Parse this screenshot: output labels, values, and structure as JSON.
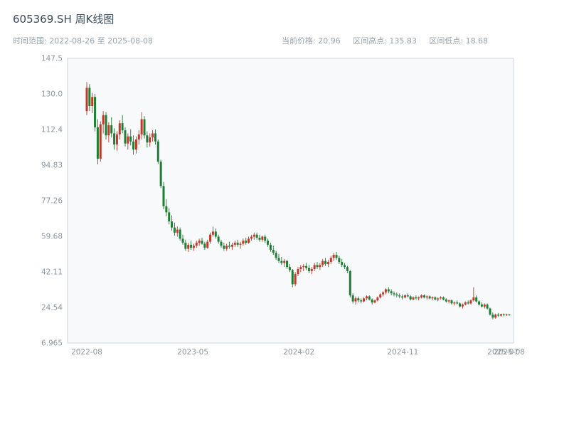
{
  "header": {
    "title": "605369.SH 周K线图",
    "time_range": {
      "text": "时间范围: 2022-08-26 至 2025-08-08",
      "label": "时间范围",
      "start": "2022-08-26",
      "end": "2025-08-08"
    },
    "stats": [
      {
        "label": "当前价格",
        "value": "20.96",
        "text": "当前价格: 20.96"
      },
      {
        "label": "区间高点",
        "value": "135.83",
        "text": "区间高点: 135.83"
      },
      {
        "label": "区间低点",
        "value": "18.68",
        "text": "区间低点: 18.68"
      }
    ]
  },
  "chart_data": {
    "type": "candlestick",
    "title": "605369.SH 周K线图",
    "symbol": "605369.SH",
    "frequency": "weekly",
    "date_range": {
      "start": "2022-08-26",
      "end": "2025-08-08"
    },
    "current_price": 20.96,
    "range_high": 135.83,
    "range_low": 18.68,
    "grid": false,
    "legend": false,
    "colors": {
      "up": "#c0392b",
      "down": "#1e7e34",
      "plot_bg": "#f8f9fa",
      "border": "#cfd6db",
      "tick_text": "#8d969e",
      "title_text": "#3a4a5a",
      "subtitle_text": "#98a2aa"
    },
    "y_axis": {
      "min": 6.965,
      "max": 147.545,
      "ticks": [
        {
          "label": "147.5",
          "value": 147.5
        },
        {
          "label": "130.0",
          "value": 130.0
        },
        {
          "label": "112.4",
          "value": 112.4
        },
        {
          "label": "94.83",
          "value": 94.83
        },
        {
          "label": "77.26",
          "value": 77.26
        },
        {
          "label": "59.68",
          "value": 59.68
        },
        {
          "label": "42.11",
          "value": 42.11
        },
        {
          "label": "24.54",
          "value": 24.54
        },
        {
          "label": "6.965",
          "value": 6.965
        }
      ]
    },
    "x_axis": {
      "ticks": [
        {
          "label": "2022-08",
          "pos": 0.0
        },
        {
          "label": "2023-05",
          "pos": 0.251
        },
        {
          "label": "2024-02",
          "pos": 0.502
        },
        {
          "label": "2024-11",
          "pos": 0.748
        },
        {
          "label": "2025-07",
          "pos": 0.985
        },
        {
          "label": "2025-08",
          "pos": 1.0
        }
      ]
    },
    "candles_format": [
      "open",
      "high",
      "low",
      "close"
    ],
    "candles": [
      [
        121.5,
        135.83,
        119.5,
        133.0
      ],
      [
        133.0,
        134.8,
        121.5,
        124.0
      ],
      [
        124.0,
        130.5,
        120.5,
        128.5
      ],
      [
        128.5,
        130.0,
        111.5,
        113.5
      ],
      [
        113.5,
        117.5,
        95.2,
        98.0
      ],
      [
        98.0,
        116.5,
        96.5,
        115.0
      ],
      [
        115.0,
        121.5,
        110.5,
        119.5
      ],
      [
        119.5,
        121.0,
        107.5,
        109.5
      ],
      [
        109.5,
        116.0,
        106.0,
        114.5
      ],
      [
        114.5,
        118.5,
        108.5,
        110.5
      ],
      [
        110.5,
        113.0,
        102.5,
        105.0
      ],
      [
        105.0,
        111.5,
        102.0,
        110.0
      ],
      [
        110.0,
        117.0,
        107.5,
        115.5
      ],
      [
        115.5,
        119.5,
        110.5,
        112.0
      ],
      [
        112.0,
        113.5,
        104.0,
        105.5
      ],
      [
        105.5,
        110.5,
        102.5,
        109.0
      ],
      [
        109.0,
        112.5,
        104.5,
        106.5
      ],
      [
        106.5,
        109.5,
        100.0,
        102.5
      ],
      [
        102.5,
        109.0,
        100.5,
        107.5
      ],
      [
        107.5,
        112.0,
        105.0,
        110.0
      ],
      [
        110.0,
        121.0,
        107.5,
        117.5
      ],
      [
        117.5,
        119.0,
        108.0,
        109.5
      ],
      [
        109.5,
        111.5,
        103.5,
        106.0
      ],
      [
        106.0,
        110.5,
        104.0,
        108.5
      ],
      [
        108.5,
        112.0,
        106.5,
        110.5
      ],
      [
        110.5,
        112.5,
        105.0,
        106.5
      ],
      [
        106.5,
        107.5,
        95.5,
        96.5
      ],
      [
        96.5,
        97.5,
        83.5,
        84.5
      ],
      [
        84.5,
        86.5,
        73.0,
        74.5
      ],
      [
        74.5,
        78.0,
        69.5,
        71.5
      ],
      [
        71.5,
        73.5,
        65.5,
        67.0
      ],
      [
        67.0,
        70.0,
        62.5,
        64.0
      ],
      [
        64.0,
        66.5,
        60.0,
        61.5
      ],
      [
        61.5,
        64.5,
        59.5,
        63.0
      ],
      [
        63.0,
        64.0,
        57.5,
        58.5
      ],
      [
        58.5,
        60.5,
        55.5,
        56.5
      ],
      [
        56.5,
        58.0,
        52.5,
        53.5
      ],
      [
        53.5,
        56.5,
        52.0,
        55.5
      ],
      [
        55.5,
        57.5,
        53.0,
        54.0
      ],
      [
        54.0,
        56.0,
        52.5,
        55.0
      ],
      [
        55.0,
        57.5,
        54.0,
        56.5
      ],
      [
        56.5,
        58.5,
        55.0,
        57.5
      ],
      [
        57.5,
        59.0,
        55.5,
        56.0
      ],
      [
        56.0,
        57.0,
        53.0,
        54.0
      ],
      [
        54.0,
        58.0,
        53.5,
        57.0
      ],
      [
        57.0,
        61.5,
        56.0,
        60.5
      ],
      [
        60.5,
        64.5,
        59.5,
        62.0
      ],
      [
        62.0,
        63.5,
        58.5,
        59.5
      ],
      [
        59.5,
        60.5,
        56.0,
        57.0
      ],
      [
        57.0,
        58.0,
        54.0,
        55.0
      ],
      [
        55.0,
        56.5,
        52.5,
        53.5
      ],
      [
        53.5,
        56.0,
        52.5,
        55.0
      ],
      [
        55.0,
        57.0,
        53.5,
        54.5
      ],
      [
        54.5,
        56.5,
        53.0,
        55.5
      ],
      [
        55.5,
        57.5,
        54.5,
        56.5
      ],
      [
        56.5,
        58.0,
        54.5,
        55.5
      ],
      [
        55.5,
        57.0,
        53.5,
        56.0
      ],
      [
        56.0,
        58.5,
        55.0,
        57.5
      ],
      [
        57.5,
        59.0,
        55.5,
        56.5
      ],
      [
        56.5,
        59.5,
        56.0,
        58.5
      ],
      [
        58.5,
        60.5,
        57.5,
        59.5
      ],
      [
        59.5,
        61.5,
        58.0,
        60.5
      ],
      [
        60.5,
        61.5,
        58.0,
        59.0
      ],
      [
        59.0,
        60.5,
        57.0,
        58.0
      ],
      [
        58.0,
        60.0,
        57.0,
        59.5
      ],
      [
        59.5,
        60.5,
        56.5,
        57.5
      ],
      [
        57.5,
        58.5,
        54.5,
        55.5
      ],
      [
        55.5,
        56.5,
        52.0,
        53.0
      ],
      [
        53.0,
        55.0,
        50.5,
        51.5
      ],
      [
        51.5,
        52.5,
        48.0,
        49.0
      ],
      [
        49.0,
        51.0,
        46.5,
        47.5
      ],
      [
        47.5,
        49.5,
        45.5,
        46.5
      ],
      [
        46.5,
        48.5,
        44.5,
        47.5
      ],
      [
        47.5,
        48.0,
        43.5,
        44.5
      ],
      [
        44.5,
        46.0,
        42.0,
        43.0
      ],
      [
        43.0,
        43.5,
        34.5,
        36.0
      ],
      [
        36.0,
        42.0,
        35.0,
        41.0
      ],
      [
        41.0,
        44.5,
        40.0,
        43.5
      ],
      [
        43.5,
        45.5,
        42.0,
        44.5
      ],
      [
        44.5,
        46.0,
        42.5,
        45.0
      ],
      [
        45.0,
        46.5,
        43.0,
        44.0
      ],
      [
        44.0,
        45.5,
        41.5,
        42.5
      ],
      [
        42.5,
        44.5,
        41.0,
        43.5
      ],
      [
        43.5,
        46.5,
        42.5,
        45.5
      ],
      [
        45.5,
        47.0,
        43.5,
        44.5
      ],
      [
        44.5,
        46.5,
        43.0,
        45.5
      ],
      [
        45.5,
        48.5,
        44.5,
        47.5
      ],
      [
        47.5,
        49.0,
        45.0,
        46.0
      ],
      [
        46.0,
        48.0,
        44.5,
        47.0
      ],
      [
        47.0,
        50.0,
        46.0,
        49.0
      ],
      [
        49.0,
        51.5,
        47.5,
        50.5
      ],
      [
        50.5,
        52.0,
        48.0,
        49.0
      ],
      [
        49.0,
        50.0,
        46.0,
        47.0
      ],
      [
        47.0,
        48.5,
        44.5,
        45.5
      ],
      [
        45.5,
        46.5,
        43.5,
        44.5
      ],
      [
        44.5,
        45.0,
        41.5,
        42.5
      ],
      [
        42.5,
        43.0,
        29.5,
        30.5
      ],
      [
        30.5,
        31.5,
        26.5,
        27.5
      ],
      [
        27.5,
        30.0,
        26.0,
        29.0
      ],
      [
        29.0,
        30.0,
        27.0,
        28.0
      ],
      [
        28.0,
        29.0,
        26.5,
        27.5
      ],
      [
        27.5,
        29.5,
        27.0,
        29.0
      ],
      [
        29.0,
        30.5,
        28.0,
        30.0
      ],
      [
        30.0,
        30.5,
        28.0,
        28.5
      ],
      [
        28.5,
        29.0,
        26.0,
        27.0
      ],
      [
        27.0,
        28.5,
        26.5,
        28.0
      ],
      [
        28.0,
        30.0,
        27.5,
        29.5
      ],
      [
        29.5,
        31.5,
        29.0,
        31.0
      ],
      [
        31.0,
        32.5,
        30.0,
        32.0
      ],
      [
        32.0,
        34.0,
        31.0,
        33.5
      ],
      [
        33.5,
        34.5,
        31.5,
        32.5
      ],
      [
        32.5,
        33.5,
        30.5,
        31.5
      ],
      [
        31.5,
        32.5,
        30.0,
        31.0
      ],
      [
        31.0,
        32.0,
        29.5,
        30.5
      ],
      [
        30.5,
        31.5,
        29.0,
        30.0
      ],
      [
        30.0,
        31.0,
        28.5,
        29.5
      ],
      [
        29.5,
        31.0,
        29.0,
        30.5
      ],
      [
        30.5,
        31.5,
        29.5,
        30.0
      ],
      [
        30.0,
        30.5,
        28.0,
        28.5
      ],
      [
        28.5,
        30.0,
        28.0,
        29.5
      ],
      [
        29.5,
        30.5,
        28.5,
        29.0
      ],
      [
        29.0,
        30.0,
        28.0,
        29.5
      ],
      [
        29.5,
        31.0,
        29.0,
        30.5
      ],
      [
        30.5,
        31.0,
        29.0,
        29.5
      ],
      [
        29.5,
        30.5,
        28.5,
        30.0
      ],
      [
        30.0,
        30.5,
        28.5,
        29.0
      ],
      [
        29.0,
        30.0,
        28.0,
        29.5
      ],
      [
        29.5,
        30.0,
        28.0,
        28.5
      ],
      [
        28.5,
        29.5,
        27.5,
        29.0
      ],
      [
        29.0,
        30.0,
        28.5,
        29.5
      ],
      [
        29.5,
        30.0,
        28.0,
        28.5
      ],
      [
        28.5,
        29.0,
        27.0,
        27.5
      ],
      [
        27.5,
        28.5,
        26.5,
        28.0
      ],
      [
        28.0,
        28.5,
        26.0,
        26.5
      ],
      [
        26.5,
        27.5,
        25.5,
        27.0
      ],
      [
        27.0,
        28.0,
        26.0,
        26.5
      ],
      [
        26.5,
        27.0,
        24.5,
        25.0
      ],
      [
        25.0,
        26.5,
        24.0,
        26.0
      ],
      [
        26.0,
        27.5,
        25.5,
        27.0
      ],
      [
        27.0,
        28.0,
        26.0,
        26.5
      ],
      [
        26.5,
        28.5,
        26.0,
        28.0
      ],
      [
        28.0,
        34.5,
        27.5,
        29.5
      ],
      [
        29.5,
        30.5,
        27.0,
        27.5
      ],
      [
        27.5,
        28.0,
        25.5,
        26.0
      ],
      [
        26.0,
        27.0,
        24.5,
        25.0
      ],
      [
        25.0,
        26.5,
        24.0,
        26.0
      ],
      [
        26.0,
        26.5,
        23.5,
        24.0
      ],
      [
        24.0,
        24.5,
        20.5,
        21.0
      ],
      [
        21.0,
        22.0,
        18.68,
        19.5
      ],
      [
        19.5,
        21.5,
        19.0,
        21.0
      ],
      [
        21.0,
        21.8,
        20.0,
        20.5
      ],
      [
        20.5,
        21.5,
        20.0,
        21.2
      ],
      [
        21.2,
        21.6,
        20.2,
        20.8
      ],
      [
        20.8,
        21.5,
        20.3,
        21.1
      ],
      [
        21.1,
        21.3,
        20.4,
        20.96
      ]
    ]
  }
}
